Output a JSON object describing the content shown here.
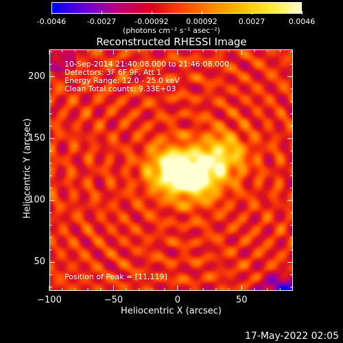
{
  "colorbar": {
    "ticks": [
      "-0.0046",
      "-0.0027",
      "-0.00092",
      "0.00092",
      "0.0027",
      "0.0046"
    ],
    "units": "(photons cm⁻² s⁻¹ asec⁻²)"
  },
  "header": {
    "title": "Reconstructed RHESSI Image"
  },
  "info": {
    "time": "10-Sep-2014 21:40:08.000 to 21:46:08.000",
    "detectors": "Detectors: 3F 6F 9F, Att 1",
    "energy": "Energy Range: 12.0 - 25.0 keV",
    "clean": "Clean    Total counts: 9.33E+03",
    "peak": "Position of Peak = [11,119]"
  },
  "footer": {
    "timestamp": "17-May-2022 02:05"
  },
  "chart_data": {
    "type": "heatmap",
    "title": "Reconstructed RHESSI Image",
    "xlabel": "Heliocentric X (arcsec)",
    "ylabel": "Heliocentric Y (arcsec)",
    "xlim": [
      -100,
      90
    ],
    "ylim": [
      27,
      222
    ],
    "xticks": [
      -100,
      -50,
      0,
      50
    ],
    "xtick_labels": [
      "−100",
      "−50",
      "0",
      "50"
    ],
    "yticks": [
      50,
      100,
      150,
      200
    ],
    "ytick_labels": [
      "50",
      "100",
      "150",
      "200"
    ],
    "colorbar_range": [
      -0.0046,
      0.0046
    ],
    "peak": [
      11,
      119
    ],
    "sources": [
      {
        "x": -5,
        "y": 125,
        "intensity": 1.0
      },
      {
        "x": 15,
        "y": 119,
        "intensity": 0.95
      },
      {
        "x": 35,
        "y": 137,
        "intensity": 0.7
      }
    ]
  }
}
